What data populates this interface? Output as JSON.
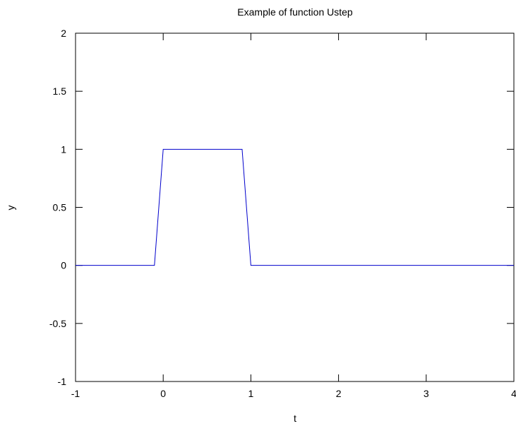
{
  "chart_data": {
    "type": "line",
    "title": "Example of function Ustep",
    "xlabel": "t",
    "ylabel": "y",
    "xlim": [
      -1,
      4
    ],
    "ylim": [
      -1,
      2
    ],
    "xticks": [
      -1,
      0,
      1,
      2,
      3,
      4
    ],
    "yticks": [
      -1,
      -0.5,
      0,
      0.5,
      1,
      1.5,
      2
    ],
    "xtick_labels": [
      "-1",
      "0",
      "1",
      "2",
      "3",
      "4"
    ],
    "ytick_labels": [
      "-1",
      "-0.5",
      "0",
      "0.5",
      "1",
      "1.5",
      "2"
    ],
    "grid": false,
    "legend": "none",
    "series": [
      {
        "color": "#0000cc",
        "x": [
          -1,
          -0.1,
          0,
          0.9,
          1,
          4
        ],
        "y": [
          0,
          0,
          1,
          1,
          0,
          0
        ]
      }
    ]
  }
}
